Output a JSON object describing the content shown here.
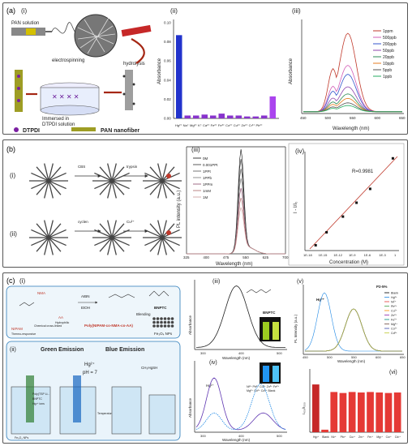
{
  "panel_a": {
    "letter": "(a)",
    "sub_i": "(i)",
    "sub_ii": "(ii)",
    "sub_iii": "(iii)",
    "pan_solution": "PAN solution",
    "electrospinning": "electrospinning",
    "hydrolysis": "hydrolysis",
    "immersed": "Immersed in",
    "dtpdi_solution": "DTPDI solution",
    "dtpdi": "DTPDI",
    "pan_nanofiber": "PAN nanofiber",
    "chart_ii": {
      "type": "bar",
      "ylabel": "Absorbance",
      "ylim": [
        0.0,
        0.1
      ],
      "yticks": [
        "0.00",
        "0.02",
        "0.04",
        "0.06",
        "0.08",
        "0.10"
      ],
      "categories": [
        "Hg²⁺",
        "Na⁺",
        "Mg²⁺",
        "K⁺",
        "Ca²⁺",
        "Fe²⁺",
        "Fe³⁺",
        "Co²⁺",
        "Cu²⁺",
        "Zn²⁺",
        "Cr³⁺",
        "Pb²⁺"
      ],
      "xlabel_text": "Hg²⁺ Na⁺ Mg²⁺ K⁺ Ca²⁺ Fe²⁺ Fe³⁺ Co²⁺ Cu²⁺ Zn²⁺ Cr³⁺ Pb²⁺",
      "values": [
        0.087,
        0.003,
        0.003,
        0.004,
        0.003,
        0.005,
        0.003,
        0.003,
        0.002,
        0.002,
        0.003,
        0.023
      ],
      "colors": [
        "#2233cc",
        "#8833cc",
        "#8833cc",
        "#8833cc",
        "#8833cc",
        "#8833cc",
        "#8833cc",
        "#8833cc",
        "#8833cc",
        "#8833cc",
        "#8833cc",
        "#aa44ee"
      ]
    },
    "chart_iii": {
      "type": "line",
      "xlabel": "Wavelength (nm)",
      "ylabel": "Absorbance",
      "xticks": [
        "450",
        "500",
        "550",
        "600",
        "650"
      ],
      "legend": [
        "1ppm",
        "500ppb",
        "200ppb",
        "50ppb",
        "20ppb",
        "10ppb",
        "5ppb",
        "1ppb"
      ],
      "colors": [
        "#c0392b",
        "#d35fb7",
        "#3355cc",
        "#8e44ad",
        "#2e8b57",
        "#e67e22",
        "#555555",
        "#27ae60"
      ],
      "peak": [
        0.88,
        0.52,
        0.42,
        0.28,
        0.2,
        0.15,
        0.1,
        0.07
      ]
    }
  },
  "panel_b": {
    "letter": "(b)",
    "sub_i": "(i)",
    "sub_ii": "(ii)",
    "sub_iii": "(iii)",
    "sub_iv": "(iv)",
    "cbs": "CBS",
    "cyclen": "cyclen",
    "cu": "Cu²⁺",
    "tryps": "trypsin",
    "chart_iii": {
      "type": "line",
      "xlabel": "Wavelength (nm)",
      "ylabel": "PL intensity (a.u.)",
      "xticks": [
        "325",
        "400",
        "475",
        "550",
        "625",
        "700"
      ],
      "legend": [
        "0M",
        "0.001PPt",
        "1PPt",
        "1PPb",
        "1PPm",
        "1mM",
        "1M"
      ]
    },
    "chart_iv": {
      "type": "scatter",
      "xlabel": "Concentration (M)",
      "ylabel": "I - I/I₀",
      "annotation": "R=0.9981",
      "xticks": [
        "1E-18",
        "1E-15",
        "1E-12",
        "1E-9",
        "1E-6",
        "1E-3",
        "1"
      ],
      "points": [
        [
          0.1,
          0.04
        ],
        [
          0.22,
          0.18
        ],
        [
          0.4,
          0.35
        ],
        [
          0.55,
          0.5
        ],
        [
          0.7,
          0.65
        ],
        [
          0.95,
          0.98
        ]
      ]
    }
  },
  "panel_c": {
    "letter": "(c)",
    "sub_i": "(i)",
    "sub_ii": "(ii)",
    "sub_iii": "(iii)",
    "sub_iv": "(iv)",
    "sub_v": "(v)",
    "sub_vi": "(vi)",
    "nipam": "NIPAM",
    "nma": "NMA",
    "aa": "AA",
    "thermo": "Thermo-responsive",
    "chem": "Chemical cross-linked",
    "hydro": "Hydrophilic",
    "aibn": "AIBN",
    "etoh": "EtOH",
    "poly": "Poly(NIPAM-co-NMA-co-AA)",
    "blending": "Blending",
    "bnptc": "BNPTC",
    "fe3o4": "Fe₃O₄ NPs",
    "green": "Green Emission",
    "blue": "Blue Emission",
    "hg": "Hg²⁺",
    "ph": "pH = 7",
    "ch3": "CH₃HgSH",
    "temperature": "Temperature",
    "legend_poly": "Poly(TSP Li...",
    "legend_bnptc": "BNPTC",
    "legend_hg": "Hg²⁺ ions",
    "legend_fe": "Fe₃O₄ NPs",
    "chart_iii": {
      "xlabel": "Wavelength (nm)",
      "ylabel": "Absorbance",
      "molecule": "BNPTC",
      "xticks": [
        "300",
        "400",
        "500"
      ]
    },
    "chart_iv": {
      "xlabel": "Wavelength (nm)",
      "ylabel": "Absorbance",
      "hg": "Hg²⁺",
      "ions": "Ni²⁺ Pb²⁺ Cu²⁺ Zn²⁺ Fe²⁺ Mg²⁺ Co²⁺ Cd²⁺ Blank",
      "xticks": [
        "300",
        "400",
        "500"
      ]
    },
    "chart_v": {
      "title": "P2-5%",
      "xlabel": "Wavelength (nm)",
      "ylabel": "PL Intensity (a.u.)",
      "hg": "Hg²⁺",
      "legend": [
        "Blank",
        "Hg²⁺",
        "Ni²⁺",
        "Pb²⁺",
        "Cu²⁺",
        "Zn²⁺",
        "Fe²⁺",
        "Mg²⁺",
        "Co²⁺",
        "Cd²⁺"
      ],
      "xticks": [
        "450",
        "500",
        "550",
        "600",
        "650"
      ]
    },
    "chart_vi": {
      "type": "bar",
      "ylabel": "I₄₅₀/I₅₅₀",
      "categories": [
        "Hg²⁺",
        "Blank",
        "Ni²⁺",
        "Pb²⁺",
        "Cu²⁺",
        "Zn²⁺",
        "Fe²⁺",
        "Mg²⁺",
        "Co²⁺",
        "Cd²⁺"
      ],
      "values": [
        0.95,
        0.05,
        0.8,
        0.78,
        0.8,
        0.79,
        0.8,
        0.79,
        0.78,
        0.79
      ]
    }
  }
}
